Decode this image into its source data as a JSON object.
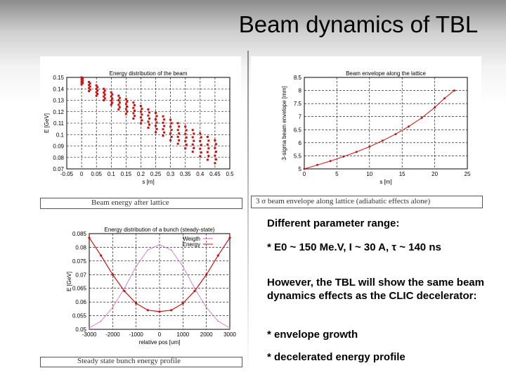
{
  "slide": {
    "title": "Beam dynamics of TBL",
    "text": {
      "heading": "Different parameter range:",
      "param_line": "* E0 ~ 150 Me.V,  I ~ 30 A, τ ~ 140 ns",
      "paragraph": "However, the TBL will show the same beam dynamics effects as the CLIC decelerator:",
      "bullet1": "* envelope growth",
      "bullet2": "* decelerated energy profile"
    },
    "captions": {
      "energy_after": "Beam energy after lattice",
      "envelope_caption": "3 σ beam envelope along lattice (adiabatic effects alone)",
      "steady_caption": "Steady state bunch energy profile"
    }
  },
  "chart_data": [
    {
      "id": "energy-distribution",
      "type": "scatter",
      "title": "Energy distribution of the beam",
      "xlabel": "s [m]",
      "ylabel": "E [GeV]",
      "xlim": [
        -0.05,
        0.5
      ],
      "ylim": [
        0.07,
        0.15
      ],
      "xticks": [
        "-0.05",
        "0",
        "0.05",
        "0.1",
        "0.15",
        "0.2",
        "0.25",
        "0.3",
        "0.35",
        "0.4",
        "0.45",
        "0.5"
      ],
      "yticks": [
        "0.07",
        "0.08",
        "0.09",
        "0.1",
        "0.11",
        "0.12",
        "0.13",
        "0.14",
        "0.15"
      ],
      "grid": true,
      "color": "#cc1111",
      "clusters": [
        {
          "s": 0.0,
          "e_top": 0.15,
          "e_bottom": 0.144
        },
        {
          "s": 0.025,
          "e_top": 0.146,
          "e_bottom": 0.138
        },
        {
          "s": 0.05,
          "e_top": 0.143,
          "e_bottom": 0.134
        },
        {
          "s": 0.075,
          "e_top": 0.14,
          "e_bottom": 0.13
        },
        {
          "s": 0.1,
          "e_top": 0.137,
          "e_bottom": 0.126
        },
        {
          "s": 0.125,
          "e_top": 0.134,
          "e_bottom": 0.122
        },
        {
          "s": 0.15,
          "e_top": 0.131,
          "e_bottom": 0.118
        },
        {
          "s": 0.175,
          "e_top": 0.128,
          "e_bottom": 0.114
        },
        {
          "s": 0.2,
          "e_top": 0.125,
          "e_bottom": 0.11
        },
        {
          "s": 0.225,
          "e_top": 0.122,
          "e_bottom": 0.106
        },
        {
          "s": 0.25,
          "e_top": 0.119,
          "e_bottom": 0.102
        },
        {
          "s": 0.275,
          "e_top": 0.116,
          "e_bottom": 0.099
        },
        {
          "s": 0.3,
          "e_top": 0.113,
          "e_bottom": 0.095
        },
        {
          "s": 0.325,
          "e_top": 0.11,
          "e_bottom": 0.092
        },
        {
          "s": 0.35,
          "e_top": 0.107,
          "e_bottom": 0.088
        },
        {
          "s": 0.375,
          "e_top": 0.104,
          "e_bottom": 0.085
        },
        {
          "s": 0.4,
          "e_top": 0.101,
          "e_bottom": 0.081
        },
        {
          "s": 0.425,
          "e_top": 0.098,
          "e_bottom": 0.078
        },
        {
          "s": 0.45,
          "e_top": 0.095,
          "e_bottom": 0.075
        }
      ]
    },
    {
      "id": "beam-envelope",
      "type": "line",
      "title": "Beam envelope along the lattice",
      "xlabel": "s [m]",
      "ylabel": "3-sigma beam envelope [mm]",
      "xlim": [
        0,
        25
      ],
      "ylim": [
        5,
        8.5
      ],
      "xticks": [
        "0",
        "5",
        "10",
        "15",
        "20",
        "25"
      ],
      "yticks": [
        "5",
        "5.5",
        "6",
        "6.5",
        "7",
        "7.5",
        "8",
        "8.5"
      ],
      "grid": true,
      "color": "#cc1111",
      "x": [
        0,
        2,
        4,
        6,
        8,
        10,
        12,
        14,
        16,
        18,
        20,
        21.5,
        23
      ],
      "y": [
        5.0,
        5.15,
        5.3,
        5.47,
        5.65,
        5.85,
        6.08,
        6.33,
        6.62,
        6.95,
        7.35,
        7.7,
        8.0
      ]
    },
    {
      "id": "bunch-energy",
      "type": "line",
      "title": "Energy distribution of a bunch (steady-state)",
      "xlabel": "relative pos [um]",
      "ylabel": "E [GeV]",
      "xlim": [
        -3000,
        3000
      ],
      "ylim": [
        0.05,
        0.085
      ],
      "xticks": [
        "-3000",
        "-2000",
        "-1000",
        "0",
        "1000",
        "2000",
        "3000"
      ],
      "yticks": [
        "0.05",
        "0.055",
        "0.06",
        "0.065",
        "0.07",
        "0.075",
        "0.08",
        "0.085"
      ],
      "grid": true,
      "legend": [
        "Weigth",
        "Energy"
      ],
      "series": [
        {
          "name": "Weigth",
          "color": "#cc66cc",
          "x": [
            -3000,
            -2500,
            -2000,
            -1500,
            -1000,
            -500,
            0,
            500,
            1000,
            1500,
            2000,
            2500,
            3000
          ],
          "y": [
            0.0505,
            0.053,
            0.058,
            0.065,
            0.073,
            0.079,
            0.081,
            0.079,
            0.073,
            0.065,
            0.058,
            0.053,
            0.0505
          ]
        },
        {
          "name": "Energy",
          "color": "#cc1111",
          "x": [
            -3000,
            -2500,
            -2000,
            -1500,
            -1000,
            -500,
            0,
            500,
            1000,
            1500,
            2000,
            2500,
            3000
          ],
          "y": [
            0.0835,
            0.077,
            0.07,
            0.064,
            0.0595,
            0.057,
            0.0565,
            0.057,
            0.0595,
            0.064,
            0.07,
            0.077,
            0.0835
          ]
        }
      ]
    }
  ]
}
